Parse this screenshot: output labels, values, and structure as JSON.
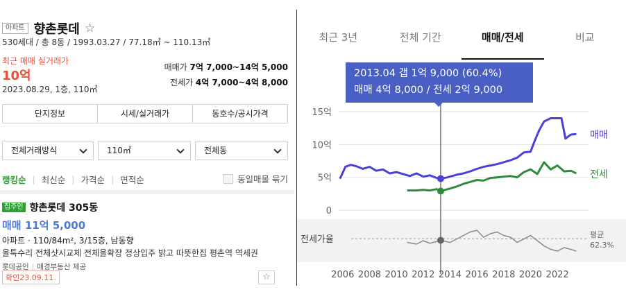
{
  "left": {
    "type_tag": "아파트",
    "name": "향촌롯데",
    "summary": "530세대 / 총 8동 / 1993.03.27 / 77.18㎡ ~ 110.13㎡",
    "recent_label": "최근 매매 실거래가",
    "recent_price": "10억",
    "recent_date": "2023.08.29, 1층, 110㎡",
    "range_sale_label": "매매가 ",
    "range_sale_value": "7억 7,000~14억 5,000",
    "range_jeonse_label": "전세가 ",
    "range_jeonse_value": "4억 7,000~4억 8,000",
    "tabs": [
      "단지정보",
      "시세/실거래가",
      "동호수/공시가격"
    ],
    "filters": {
      "type": "전체거래방식",
      "area": "110㎡",
      "dong": "전체동"
    },
    "sort": [
      "랭킹순",
      "최신순",
      "가격순",
      "면적순"
    ],
    "group_label": "동일매물 묶기",
    "listing": {
      "badge": "집주인",
      "title": "향촌롯데 305동",
      "price": "매매 11억 5,000",
      "spec": "아파트 · 110/84m², 3/15층, 남동향",
      "desc": "올특수리 전체샷시교체 전체올확장 정상입주 밝고 따뜻한집 평촌역 역세권",
      "agent": "롯데공인",
      "provider": "매경부동산 제공",
      "confirm": "확인23.09.11."
    }
  },
  "right": {
    "tabs": [
      "최근 3년",
      "전체 기간",
      "매매/전세",
      "비교"
    ],
    "active_tab": 2,
    "tooltip_line1": "2013.04  갭 1억 9,000 (60.4%)",
    "tooltip_line2": "매매 4억 8,000 / 전세 2억 9,000"
  },
  "chart_data": {
    "type": "line",
    "x_ticks": [
      2006,
      2008,
      2010,
      2012,
      2014,
      2016,
      2018,
      2020,
      2022
    ],
    "y_ticks": [
      "0",
      "5억",
      "10억",
      "15억"
    ],
    "ylim": [
      0,
      15
    ],
    "series": [
      {
        "name": "매매",
        "color": "#4a3fd6",
        "x": [
          2005.8,
          2006.2,
          2006.6,
          2007,
          2007.5,
          2008,
          2008.5,
          2009,
          2009.5,
          2010,
          2010.5,
          2011,
          2011.5,
          2012,
          2012.5,
          2013,
          2013.3,
          2013.8,
          2014.5,
          2015,
          2015.5,
          2016,
          2016.5,
          2017,
          2017.5,
          2018,
          2018.5,
          2019,
          2019.5,
          2020,
          2020.3,
          2020.6,
          2021,
          2021.5,
          2022,
          2022.3,
          2022.6,
          2023,
          2023.4
        ],
        "y": [
          4.8,
          6.6,
          6.9,
          6.7,
          6.3,
          6.6,
          6.0,
          6.2,
          5.6,
          5.8,
          5.5,
          5.2,
          5.6,
          5.1,
          5.3,
          4.9,
          4.8,
          5.0,
          5.4,
          5.6,
          5.9,
          6.3,
          6.6,
          6.8,
          7.0,
          7.3,
          7.6,
          8.0,
          8.8,
          8.9,
          10.5,
          12.0,
          13.5,
          14.0,
          14.0,
          14.0,
          10.9,
          11.5,
          11.6
        ]
      },
      {
        "name": "전세",
        "color": "#2e8b3c",
        "x": [
          2010.8,
          2011.5,
          2012,
          2012.5,
          2013,
          2013.3,
          2014,
          2014.5,
          2015,
          2015.5,
          2016,
          2016.5,
          2017,
          2017.5,
          2018,
          2018.5,
          2019,
          2019.5,
          2020,
          2020.5,
          2021,
          2021.5,
          2022,
          2022.5,
          2023,
          2023.4
        ],
        "y": [
          3.0,
          3.0,
          3.1,
          3.0,
          3.2,
          2.9,
          3.3,
          3.6,
          4.0,
          4.3,
          4.6,
          4.5,
          4.9,
          5.0,
          5.1,
          5.2,
          5.0,
          5.8,
          6.2,
          5.5,
          7.3,
          6.2,
          6.8,
          5.9,
          6.0,
          5.6
        ]
      },
      {
        "name": "전세가율",
        "color": "#888888",
        "x": [
          2010.8,
          2011.5,
          2012,
          2012.5,
          2013.3,
          2014,
          2014.5,
          2015,
          2015.5,
          2016,
          2016.5,
          2017,
          2017.5,
          2018,
          2018.5,
          2019,
          2019.5,
          2020,
          2020.5,
          2021,
          2021.5,
          2022,
          2022.5,
          2023,
          2023.4
        ],
        "y": [
          58,
          56,
          60,
          57,
          60.4,
          58,
          62,
          66,
          70,
          72,
          64,
          68,
          70,
          66,
          64,
          58,
          62,
          66,
          60,
          54,
          50,
          48,
          52,
          50,
          48
        ]
      }
    ],
    "ratio_label": "전세가율",
    "avg_label": "평균",
    "avg_value": "62.3%",
    "cursor_x": 2013.3
  }
}
